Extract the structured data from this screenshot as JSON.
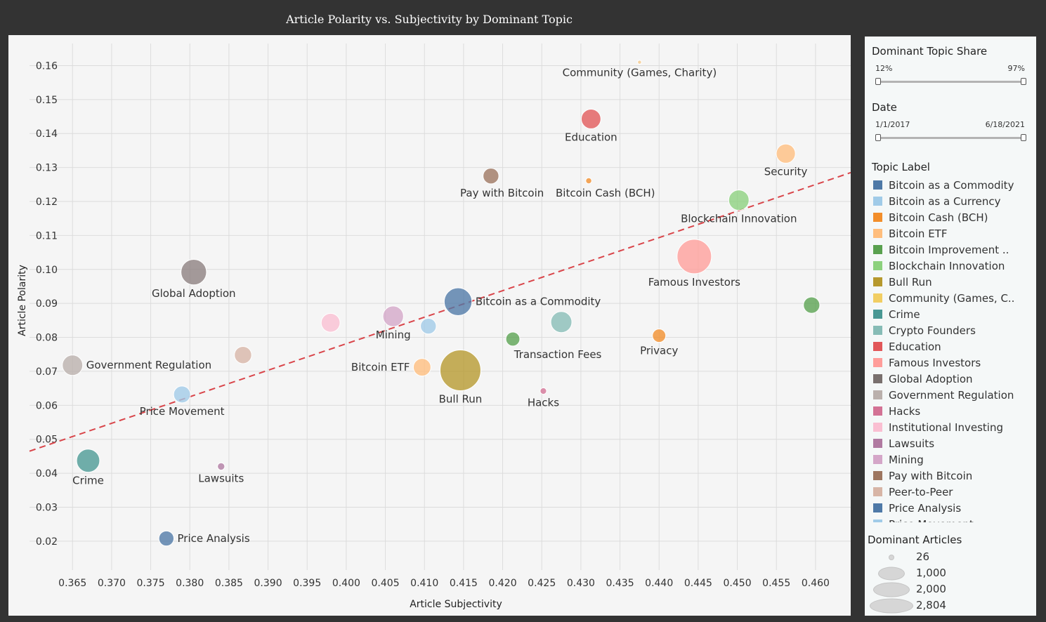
{
  "chart_data": {
    "type": "scatter",
    "title": "Article Polarity vs. Subjectivity by Dominant Topic",
    "xlabel": "Article Subjectivity",
    "ylabel": "Article Polarity",
    "xlim": [
      0.3595,
      0.4645
    ],
    "ylim": [
      0.0115,
      0.1665
    ],
    "xticks": [
      "0.365",
      "0.370",
      "0.375",
      "0.380",
      "0.385",
      "0.390",
      "0.395",
      "0.400",
      "0.405",
      "0.410",
      "0.415",
      "0.420",
      "0.425",
      "0.430",
      "0.435",
      "0.440",
      "0.445",
      "0.450",
      "0.455",
      "0.460"
    ],
    "yticks": [
      "0.02",
      "0.03",
      "0.04",
      "0.05",
      "0.06",
      "0.07",
      "0.08",
      "0.09",
      "0.10",
      "0.11",
      "0.12",
      "0.13",
      "0.14",
      "0.15",
      "0.16"
    ],
    "grid": true,
    "trend_line": {
      "x": [
        0.3595,
        0.4645
      ],
      "y": [
        0.0465,
        0.1285
      ],
      "color": "#d9454a",
      "style": "dashed"
    },
    "points": [
      {
        "label": "Community (Games, Charity)",
        "x": 0.4375,
        "y": 0.161,
        "articles": 26,
        "color": "#f5c98a",
        "label_pos": "below"
      },
      {
        "label": "Education",
        "x": 0.4313,
        "y": 0.1443,
        "articles": 650,
        "color": "#e15759",
        "label_pos": "below"
      },
      {
        "label": "Security",
        "x": 0.4562,
        "y": 0.1341,
        "articles": 620,
        "color": "#ffbe7d",
        "label_pos": "below"
      },
      {
        "label": "Pay with Bitcoin",
        "x": 0.4185,
        "y": 0.1275,
        "articles": 420,
        "color": "#9c755f",
        "label_pos": "below-left"
      },
      {
        "label": "Bitcoin Cash (BCH)",
        "x": 0.431,
        "y": 0.1261,
        "articles": 60,
        "color": "#f28e2b",
        "label_pos": "below"
      },
      {
        "label": "Blockchain Innovation",
        "x": 0.4502,
        "y": 0.1204,
        "articles": 700,
        "color": "#8cd17d",
        "label_pos": "below"
      },
      {
        "label": "Famous Investors",
        "x": 0.4445,
        "y": 0.1038,
        "articles": 2000,
        "color": "#ff9d9a",
        "label_pos": "below"
      },
      {
        "label": "Global Adoption",
        "x": 0.3805,
        "y": 0.0992,
        "articles": 1100,
        "color": "#8c7f7f",
        "label_pos": "below"
      },
      {
        "label": "Bitcoin as a Commodity",
        "x": 0.4143,
        "y": 0.0905,
        "articles": 1300,
        "color": "#4e79a7",
        "label_pos": "right"
      },
      {
        "label": "Bitcoin Improvement Proposals",
        "x": 0.4595,
        "y": 0.0895,
        "articles": 450,
        "color": "#59a14f",
        "label_pos": "none"
      },
      {
        "label": "Mining",
        "x": 0.406,
        "y": 0.0862,
        "articles": 720,
        "color": "#d4a6c8",
        "label_pos": "below"
      },
      {
        "label": "Crypto Founders",
        "x": 0.4275,
        "y": 0.0845,
        "articles": 750,
        "color": "#86bcb6",
        "label_pos": "none"
      },
      {
        "label": "Institutional Investing",
        "x": 0.398,
        "y": 0.0843,
        "articles": 600,
        "color": "#fabfd2",
        "label_pos": "none"
      },
      {
        "label": "Bitcoin as a Currency",
        "x": 0.4105,
        "y": 0.0833,
        "articles": 420,
        "color": "#a0cbe8",
        "label_pos": "none"
      },
      {
        "label": "Privacy",
        "x": 0.44,
        "y": 0.0805,
        "articles": 300,
        "color": "#f28e2b",
        "label_pos": "below"
      },
      {
        "label": "Transaction Fees",
        "x": 0.4213,
        "y": 0.0795,
        "articles": 330,
        "color": "#59a14f",
        "label_pos": "below-right"
      },
      {
        "label": "Peer-to-Peer",
        "x": 0.3868,
        "y": 0.0748,
        "articles": 500,
        "color": "#d7b5a6",
        "label_pos": "none"
      },
      {
        "label": "Government Regulation",
        "x": 0.365,
        "y": 0.0718,
        "articles": 700,
        "color": "#bab0ac",
        "label_pos": "right"
      },
      {
        "label": "Bitcoin ETF",
        "x": 0.4097,
        "y": 0.0712,
        "articles": 520,
        "color": "#ffbe7d",
        "label_pos": "left"
      },
      {
        "label": "Bull Run",
        "x": 0.4146,
        "y": 0.0703,
        "articles": 2804,
        "color": "#b6992d",
        "label_pos": "below"
      },
      {
        "label": "Hacks",
        "x": 0.4252,
        "y": 0.0642,
        "articles": 70,
        "color": "#d37295",
        "label_pos": "below"
      },
      {
        "label": "Price Movement",
        "x": 0.379,
        "y": 0.0632,
        "articles": 480,
        "color": "#a0cbe8",
        "label_pos": "below"
      },
      {
        "label": "Crime",
        "x": 0.367,
        "y": 0.0437,
        "articles": 900,
        "color": "#499894",
        "label_pos": "below"
      },
      {
        "label": "Lawsuits",
        "x": 0.384,
        "y": 0.042,
        "articles": 90,
        "color": "#b07aa1",
        "label_pos": "below"
      },
      {
        "label": "Price Analysis",
        "x": 0.377,
        "y": 0.0208,
        "articles": 380,
        "color": "#4e79a7",
        "label_pos": "right"
      }
    ]
  },
  "sidebar": {
    "share_title": "Dominant Topic Share",
    "share_min": "12%",
    "share_max": "97%",
    "date_title": "Date",
    "date_min": "1/1/2017",
    "date_max": "6/18/2021",
    "topic_title": "Topic Label",
    "topics": [
      {
        "label": "Bitcoin as a Commodity",
        "color": "#4e79a7"
      },
      {
        "label": "Bitcoin as a Currency",
        "color": "#a0cbe8"
      },
      {
        "label": "Bitcoin Cash (BCH)",
        "color": "#f28e2b"
      },
      {
        "label": "Bitcoin ETF",
        "color": "#ffbe7d"
      },
      {
        "label": "Bitcoin Improvement ..",
        "color": "#59a14f"
      },
      {
        "label": "Blockchain Innovation",
        "color": "#8cd17d"
      },
      {
        "label": "Bull Run",
        "color": "#b6992d"
      },
      {
        "label": "Community (Games, C..",
        "color": "#f1ce63"
      },
      {
        "label": "Crime",
        "color": "#499894"
      },
      {
        "label": "Crypto Founders",
        "color": "#86bcb6"
      },
      {
        "label": "Education",
        "color": "#e15759"
      },
      {
        "label": "Famous Investors",
        "color": "#ff9d9a"
      },
      {
        "label": "Global Adoption",
        "color": "#79706e"
      },
      {
        "label": "Government Regulation",
        "color": "#bab0ac"
      },
      {
        "label": "Hacks",
        "color": "#d37295"
      },
      {
        "label": "Institutional Investing",
        "color": "#fabfd2"
      },
      {
        "label": "Lawsuits",
        "color": "#b07aa1"
      },
      {
        "label": "Mining",
        "color": "#d4a6c8"
      },
      {
        "label": "Pay with Bitcoin",
        "color": "#9d7660"
      },
      {
        "label": "Peer-to-Peer",
        "color": "#d7b5a6"
      },
      {
        "label": "Price Analysis",
        "color": "#4e79a7"
      },
      {
        "label": "Price Movement",
        "color": "#a0cbe8"
      }
    ],
    "size_title": "Dominant Articles",
    "sizes": [
      {
        "label": "26",
        "value": 26
      },
      {
        "label": "1,000",
        "value": 1000
      },
      {
        "label": "2,000",
        "value": 2000
      },
      {
        "label": "2,804",
        "value": 2804
      }
    ]
  }
}
